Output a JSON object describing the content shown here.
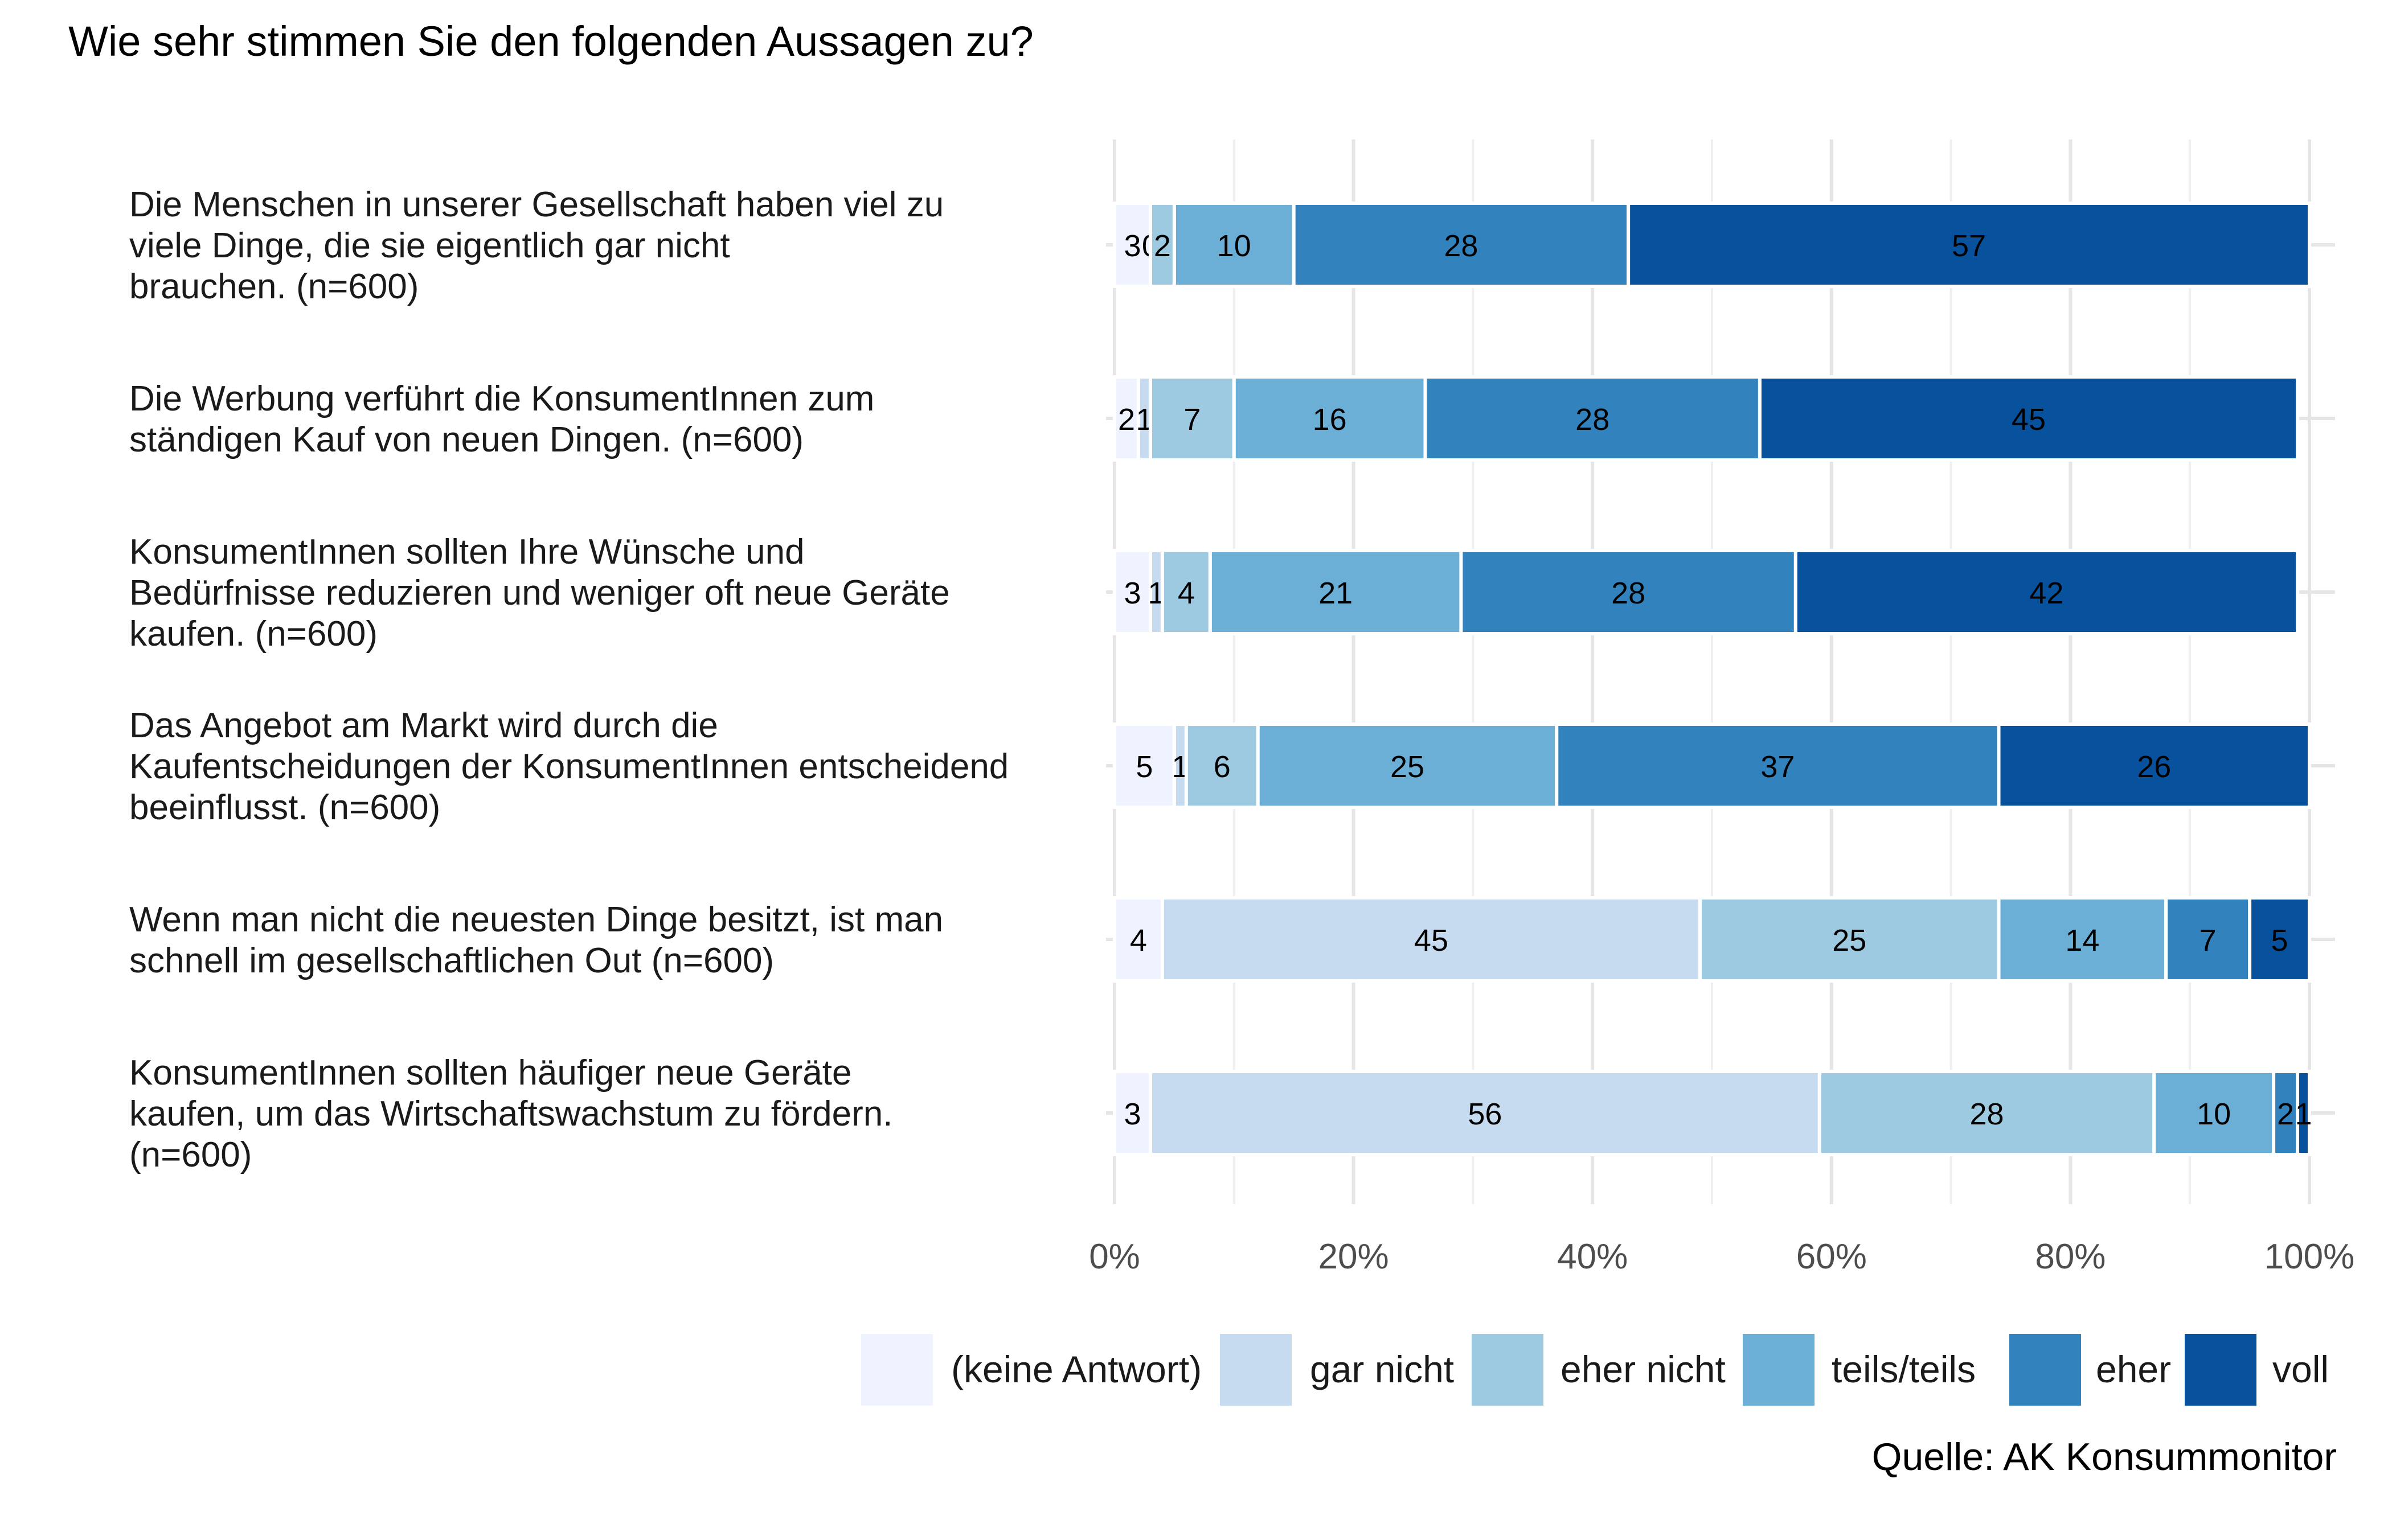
{
  "chart_data": {
    "type": "bar",
    "orientation": "horizontal",
    "stacked": true,
    "percent": true,
    "title": "Wie sehr stimmen Sie den folgenden Aussagen zu?",
    "caption": "Quelle: AK Konsummonitor",
    "xlim": [
      0,
      100
    ],
    "x_ticks": [
      "0%",
      "20%",
      "40%",
      "60%",
      "80%",
      "100%"
    ],
    "x_tick_values": [
      0,
      20,
      40,
      60,
      80,
      100
    ],
    "grid": true,
    "legend_position": "bottom",
    "categories": [
      [
        "Die Menschen in unserer Gesellschaft haben viel zu",
        "viele Dinge, die sie eigentlich gar nicht",
        "brauchen. (n=600)"
      ],
      [
        "Die Werbung verführt die KonsumentInnen zum",
        "ständigen Kauf von neuen Dingen. (n=600)"
      ],
      [
        "KonsumentInnen sollten Ihre Wünsche und",
        "Bedürfnisse reduzieren und weniger oft neue Geräte",
        "kaufen. (n=600)"
      ],
      [
        "Das Angebot am Markt wird durch die",
        "Kaufentscheidungen der KonsumentInnen entscheidend",
        "beeinflusst. (n=600)"
      ],
      [
        "Wenn man nicht die neuesten Dinge besitzt, ist man",
        "schnell im gesellschaftlichen Out (n=600)"
      ],
      [
        "KonsumentInnen sollten häufiger neue Geräte",
        "kaufen, um das Wirtschaftswachstum zu fördern.",
        "(n=600)"
      ]
    ],
    "series": [
      {
        "name": "(keine Antwort)",
        "color": "#eff3ff",
        "values": [
          3,
          2,
          3,
          5,
          4,
          3
        ],
        "labels": [
          "3",
          "2",
          "3",
          "5",
          "4",
          "3"
        ]
      },
      {
        "name": "gar nicht",
        "color": "#c6dbef",
        "values": [
          0,
          1,
          1,
          1,
          45,
          56
        ],
        "labels": [
          "0",
          "1",
          "1",
          "1",
          "45",
          "56"
        ]
      },
      {
        "name": "eher nicht",
        "color": "#9ecae1",
        "values": [
          2,
          7,
          4,
          6,
          25,
          28
        ],
        "labels": [
          "2",
          "7",
          "4",
          "6",
          "25",
          "28"
        ]
      },
      {
        "name": "teils/teils",
        "color": "#6baed6",
        "values": [
          10,
          16,
          21,
          25,
          14,
          10
        ],
        "labels": [
          "10",
          "16",
          "21",
          "25",
          "14",
          "10"
        ]
      },
      {
        "name": "eher",
        "color": "#3182bd",
        "values": [
          28,
          28,
          28,
          37,
          7,
          2
        ],
        "labels": [
          "28",
          "28",
          "28",
          "37",
          "7",
          "2"
        ]
      },
      {
        "name": "voll",
        "color": "#08519c",
        "values": [
          57,
          45,
          42,
          26,
          5,
          1
        ],
        "labels": [
          "57",
          "45",
          "42",
          "26",
          "5",
          "1"
        ]
      }
    ]
  }
}
